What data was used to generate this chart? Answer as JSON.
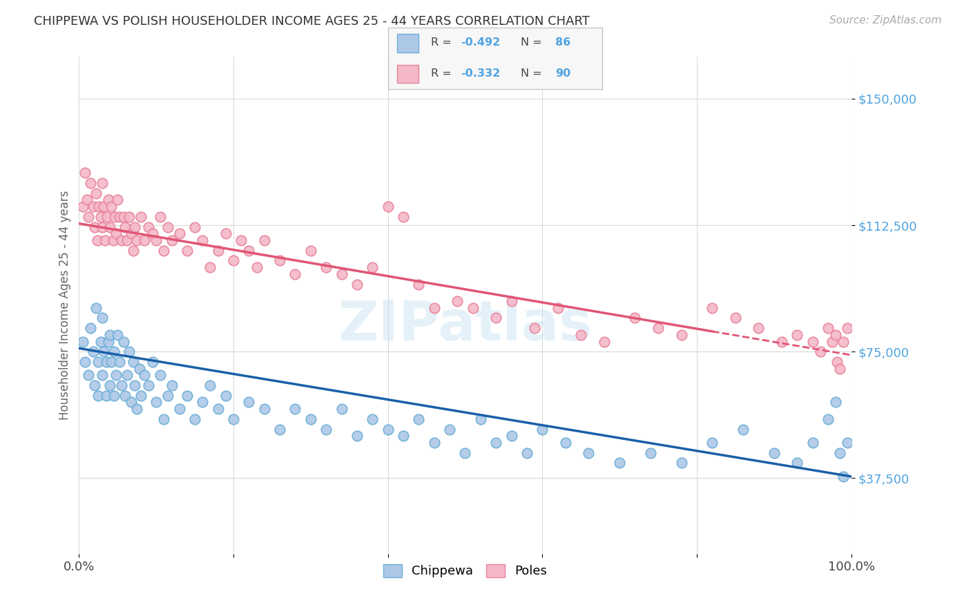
{
  "title": "CHIPPEWA VS POLISH HOUSEHOLDER INCOME AGES 25 - 44 YEARS CORRELATION CHART",
  "source": "Source: ZipAtlas.com",
  "ylabel": "Householder Income Ages 25 - 44 years",
  "ytick_labels": [
    "$37,500",
    "$75,000",
    "$112,500",
    "$150,000"
  ],
  "ytick_values": [
    37500,
    75000,
    112500,
    150000
  ],
  "ymin": 15000,
  "ymax": 162500,
  "xmin": 0.0,
  "xmax": 1.0,
  "chippewa_color": "#aec8e8",
  "chippewa_edge_color": "#6baed6",
  "poles_color": "#f4b8c8",
  "poles_edge_color": "#e8829a",
  "chippewa_line_color": "#1a5fa8",
  "poles_line_color": "#e05575",
  "watermark": "ZIPatlas",
  "background_color": "#ffffff",
  "chippewa_scatter_x": [
    0.005,
    0.008,
    0.012,
    0.015,
    0.018,
    0.02,
    0.022,
    0.025,
    0.025,
    0.028,
    0.03,
    0.03,
    0.032,
    0.035,
    0.035,
    0.038,
    0.04,
    0.04,
    0.042,
    0.045,
    0.045,
    0.048,
    0.05,
    0.052,
    0.055,
    0.058,
    0.06,
    0.062,
    0.065,
    0.068,
    0.07,
    0.072,
    0.075,
    0.078,
    0.08,
    0.085,
    0.09,
    0.095,
    0.1,
    0.105,
    0.11,
    0.115,
    0.12,
    0.13,
    0.14,
    0.15,
    0.16,
    0.17,
    0.18,
    0.19,
    0.2,
    0.22,
    0.24,
    0.26,
    0.28,
    0.3,
    0.32,
    0.34,
    0.36,
    0.38,
    0.4,
    0.42,
    0.44,
    0.46,
    0.48,
    0.5,
    0.52,
    0.54,
    0.56,
    0.58,
    0.6,
    0.63,
    0.66,
    0.7,
    0.74,
    0.78,
    0.82,
    0.86,
    0.9,
    0.93,
    0.95,
    0.97,
    0.98,
    0.985,
    0.99,
    0.995
  ],
  "chippewa_scatter_y": [
    78000,
    72000,
    68000,
    82000,
    75000,
    65000,
    88000,
    72000,
    62000,
    78000,
    85000,
    68000,
    75000,
    62000,
    72000,
    78000,
    65000,
    80000,
    72000,
    75000,
    62000,
    68000,
    80000,
    72000,
    65000,
    78000,
    62000,
    68000,
    75000,
    60000,
    72000,
    65000,
    58000,
    70000,
    62000,
    68000,
    65000,
    72000,
    60000,
    68000,
    55000,
    62000,
    65000,
    58000,
    62000,
    55000,
    60000,
    65000,
    58000,
    62000,
    55000,
    60000,
    58000,
    52000,
    58000,
    55000,
    52000,
    58000,
    50000,
    55000,
    52000,
    50000,
    55000,
    48000,
    52000,
    45000,
    55000,
    48000,
    50000,
    45000,
    52000,
    48000,
    45000,
    42000,
    45000,
    42000,
    48000,
    52000,
    45000,
    42000,
    48000,
    55000,
    60000,
    45000,
    38000,
    48000
  ],
  "poles_scatter_x": [
    0.005,
    0.008,
    0.01,
    0.012,
    0.015,
    0.018,
    0.02,
    0.022,
    0.024,
    0.026,
    0.028,
    0.03,
    0.03,
    0.032,
    0.034,
    0.036,
    0.038,
    0.04,
    0.042,
    0.044,
    0.046,
    0.048,
    0.05,
    0.052,
    0.055,
    0.058,
    0.06,
    0.062,
    0.065,
    0.068,
    0.07,
    0.072,
    0.075,
    0.08,
    0.085,
    0.09,
    0.095,
    0.1,
    0.105,
    0.11,
    0.115,
    0.12,
    0.13,
    0.14,
    0.15,
    0.16,
    0.17,
    0.18,
    0.19,
    0.2,
    0.21,
    0.22,
    0.23,
    0.24,
    0.26,
    0.28,
    0.3,
    0.32,
    0.34,
    0.36,
    0.38,
    0.4,
    0.42,
    0.44,
    0.46,
    0.49,
    0.51,
    0.54,
    0.56,
    0.59,
    0.62,
    0.65,
    0.68,
    0.72,
    0.75,
    0.78,
    0.82,
    0.85,
    0.88,
    0.91,
    0.93,
    0.95,
    0.96,
    0.97,
    0.975,
    0.98,
    0.982,
    0.985,
    0.99,
    0.995
  ],
  "poles_scatter_y": [
    118000,
    128000,
    120000,
    115000,
    125000,
    118000,
    112000,
    122000,
    108000,
    118000,
    115000,
    125000,
    112000,
    118000,
    108000,
    115000,
    120000,
    112000,
    118000,
    108000,
    115000,
    110000,
    120000,
    115000,
    108000,
    115000,
    112000,
    108000,
    115000,
    110000,
    105000,
    112000,
    108000,
    115000,
    108000,
    112000,
    110000,
    108000,
    115000,
    105000,
    112000,
    108000,
    110000,
    105000,
    112000,
    108000,
    100000,
    105000,
    110000,
    102000,
    108000,
    105000,
    100000,
    108000,
    102000,
    98000,
    105000,
    100000,
    98000,
    95000,
    100000,
    118000,
    115000,
    95000,
    88000,
    90000,
    88000,
    85000,
    90000,
    82000,
    88000,
    80000,
    78000,
    85000,
    82000,
    80000,
    88000,
    85000,
    82000,
    78000,
    80000,
    78000,
    75000,
    82000,
    78000,
    80000,
    72000,
    70000,
    78000,
    82000
  ]
}
